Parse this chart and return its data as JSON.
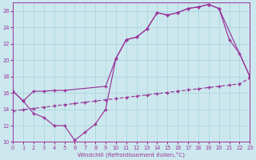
{
  "xlabel": "Windchill (Refroidissement éolien,°C)",
  "bg_color": "#cce8ee",
  "grid_color": "#b0d8e0",
  "line_color": "#993399",
  "xlim": [
    0,
    23
  ],
  "ylim": [
    10,
    27
  ],
  "xticks": [
    0,
    1,
    2,
    3,
    4,
    5,
    6,
    7,
    8,
    9,
    10,
    11,
    12,
    13,
    14,
    15,
    16,
    17,
    18,
    19,
    20,
    21,
    22,
    23
  ],
  "yticks": [
    10,
    12,
    14,
    16,
    18,
    20,
    22,
    24,
    26
  ],
  "curve1_x": [
    0,
    1,
    2,
    3,
    4,
    5,
    6,
    7,
    8,
    9,
    10,
    11,
    12,
    13,
    14,
    15,
    16,
    17,
    18,
    19,
    20,
    21,
    22,
    23
  ],
  "curve1_y": [
    16.2,
    15.0,
    13.5,
    13.0,
    12.0,
    12.0,
    10.2,
    11.2,
    12.2,
    14.0,
    20.2,
    22.5,
    22.8,
    23.8,
    25.8,
    25.5,
    25.8,
    26.3,
    26.5,
    26.8,
    26.3,
    22.5,
    20.8,
    18.0
  ],
  "curve2_x": [
    0,
    1,
    2,
    3,
    4,
    5,
    9,
    10,
    11,
    12,
    13,
    14,
    15,
    16,
    17,
    18,
    19,
    20,
    23
  ],
  "curve2_y": [
    16.2,
    15.0,
    16.2,
    16.2,
    16.3,
    16.3,
    16.8,
    20.2,
    22.5,
    22.8,
    23.8,
    25.8,
    25.5,
    25.8,
    26.3,
    26.5,
    26.8,
    26.3,
    18.0
  ],
  "trend_x": [
    0,
    1,
    2,
    3,
    4,
    5,
    6,
    7,
    8,
    9,
    10,
    11,
    12,
    13,
    14,
    15,
    16,
    17,
    18,
    19,
    20,
    21,
    22,
    23
  ],
  "trend_y": [
    13.8,
    13.95,
    14.1,
    14.25,
    14.4,
    14.55,
    14.7,
    14.85,
    15.0,
    15.15,
    15.3,
    15.45,
    15.6,
    15.75,
    15.9,
    16.05,
    16.2,
    16.35,
    16.5,
    16.65,
    16.8,
    16.95,
    17.1,
    17.8
  ]
}
